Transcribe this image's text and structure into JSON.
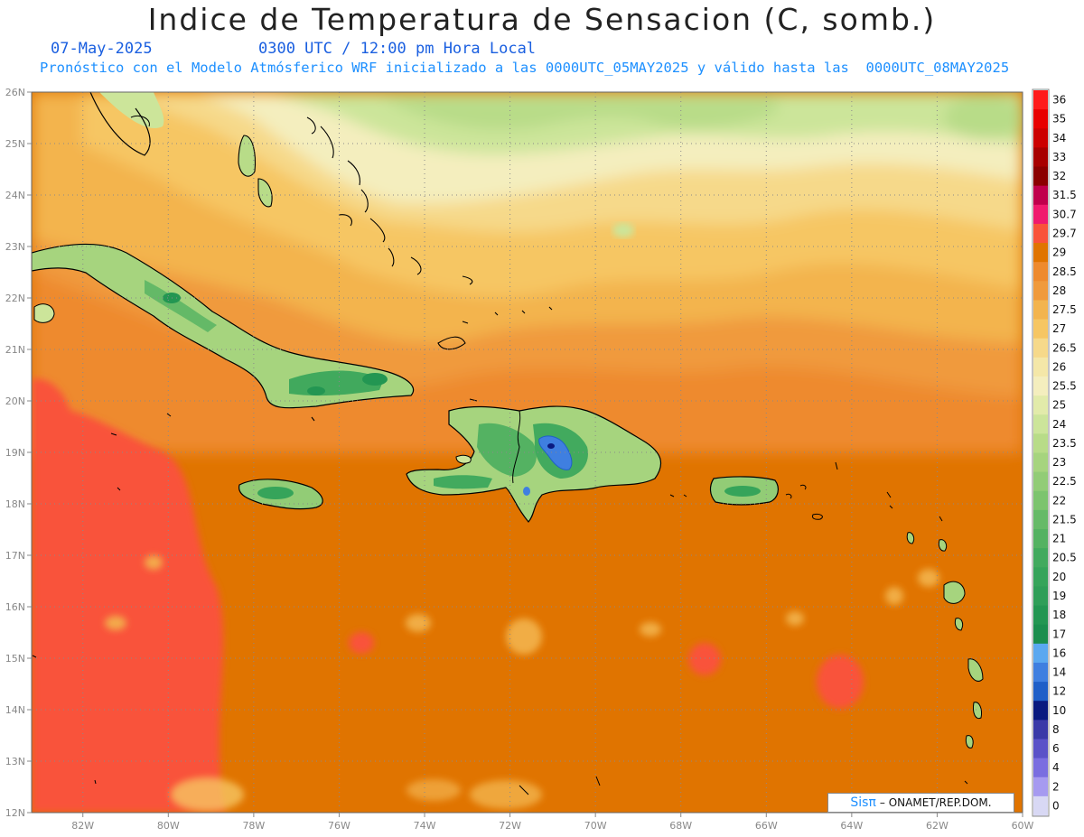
{
  "title": "Indice de Temperatura de Sensacion (C, somb.)",
  "date": "07-May-2025",
  "time_label": "0300 UTC / 12:00 pm Hora Local",
  "model_line": "Pronóstico con el Modelo Atmósferico WRF inicializado a las 0000UTC_05MAY2025 y válido hasta las  0000UTC_08MAY2025",
  "credit": {
    "brand": "Sisπ",
    "text": "– ONAMET/REP.DOM."
  },
  "colors": {
    "sea_warm": "#e07400",
    "sea_hot": "#f9533a",
    "orange_mid": "#ee8a2e",
    "orange_light": "#f3b44e",
    "yellow": "#f6d98a",
    "pale": "#f4eebe",
    "green_pale": "#cce59a",
    "green_mid": "#7cc46e",
    "green_dark": "#2f9e58",
    "blue": "#3f7fe0"
  },
  "chart_data": {
    "type": "heatmap",
    "variable": "heat index",
    "lat_ticks": [
      "26N",
      "25N",
      "24N",
      "23N",
      "22N",
      "21N",
      "20N",
      "19N",
      "18N",
      "17N",
      "16N",
      "15N",
      "14N",
      "13N",
      "12N"
    ],
    "lon_ticks": [
      "82W",
      "80W",
      "78W",
      "76W",
      "74W",
      "72W",
      "70W",
      "68W",
      "66W",
      "64W",
      "62W",
      "60W"
    ],
    "lat_range": [
      12,
      26
    ],
    "lon_range": [
      -83.2,
      -60
    ],
    "grid": true,
    "legend_position": "right",
    "legend": [
      {
        "value": "36",
        "color": "#ff1a1a"
      },
      {
        "value": "35",
        "color": "#e80000"
      },
      {
        "value": "34",
        "color": "#cc0000"
      },
      {
        "value": "33",
        "color": "#a80000"
      },
      {
        "value": "32",
        "color": "#8b0000"
      },
      {
        "value": "31.5",
        "color": "#c0004c"
      },
      {
        "value": "30.7",
        "color": "#f01a6e"
      },
      {
        "value": "29.7",
        "color": "#f9533a"
      },
      {
        "value": "29",
        "color": "#e07400"
      },
      {
        "value": "28.5",
        "color": "#ee8a2e"
      },
      {
        "value": "28",
        "color": "#f09a3c"
      },
      {
        "value": "27.5",
        "color": "#f3b44e"
      },
      {
        "value": "27",
        "color": "#f6c663"
      },
      {
        "value": "26.5",
        "color": "#f6d98a"
      },
      {
        "value": "26",
        "color": "#f4e7a8"
      },
      {
        "value": "25.5",
        "color": "#f4eebe"
      },
      {
        "value": "25",
        "color": "#e2ebaa"
      },
      {
        "value": "24",
        "color": "#cce59a"
      },
      {
        "value": "23.5",
        "color": "#b8dc88"
      },
      {
        "value": "23",
        "color": "#a6d47e"
      },
      {
        "value": "22.5",
        "color": "#92cc76"
      },
      {
        "value": "22",
        "color": "#7cc46e"
      },
      {
        "value": "21.5",
        "color": "#66ba68"
      },
      {
        "value": "21",
        "color": "#54b262"
      },
      {
        "value": "20.5",
        "color": "#42aa5e"
      },
      {
        "value": "20",
        "color": "#36a45a"
      },
      {
        "value": "19",
        "color": "#2f9e58"
      },
      {
        "value": "18",
        "color": "#239652"
      },
      {
        "value": "17",
        "color": "#1b8e4e"
      },
      {
        "value": "16",
        "color": "#5aa8f0"
      },
      {
        "value": "14",
        "color": "#3f7fe0"
      },
      {
        "value": "12",
        "color": "#1f5fc8"
      },
      {
        "value": "10",
        "color": "#0a1a80"
      },
      {
        "value": "8",
        "color": "#3a3aa8"
      },
      {
        "value": "6",
        "color": "#5a52c8"
      },
      {
        "value": "4",
        "color": "#7a6ee0"
      },
      {
        "value": "2",
        "color": "#a69af0"
      },
      {
        "value": "0",
        "color": "#d8d8f4"
      }
    ]
  }
}
